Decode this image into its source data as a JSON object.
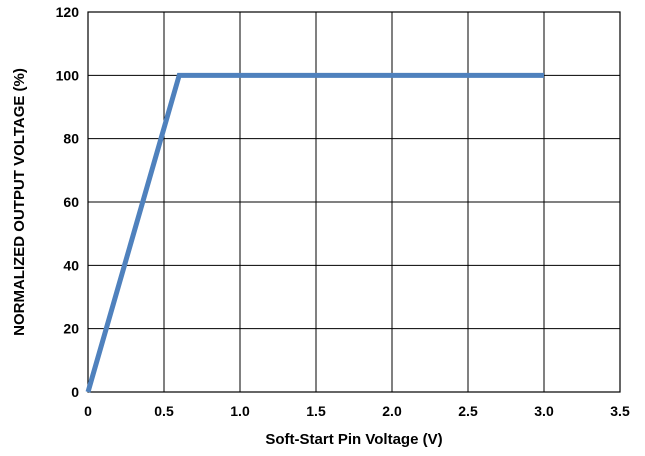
{
  "chart_data": {
    "type": "line",
    "xlabel": "Soft-Start Pin Voltage (V)",
    "ylabel": "NORMALIZED OUTPUT VOLTAGE (%)",
    "xlim": [
      0,
      3.5
    ],
    "ylim": [
      0,
      120
    ],
    "xticks": [
      0,
      0.5,
      1.0,
      1.5,
      2.0,
      2.5,
      3.0,
      3.5
    ],
    "xtick_labels": [
      "0",
      "0.5",
      "1.0",
      "1.5",
      "2.0",
      "2.5",
      "3.0",
      "3.5"
    ],
    "yticks": [
      0,
      20,
      40,
      60,
      80,
      100,
      120
    ],
    "ytick_labels": [
      "0",
      "20",
      "40",
      "60",
      "80",
      "100",
      "120"
    ],
    "grid": true,
    "series": [
      {
        "color": "#4f81bd",
        "x": [
          0,
          0.6,
          3.0
        ],
        "y": [
          0,
          100,
          100
        ]
      }
    ]
  }
}
